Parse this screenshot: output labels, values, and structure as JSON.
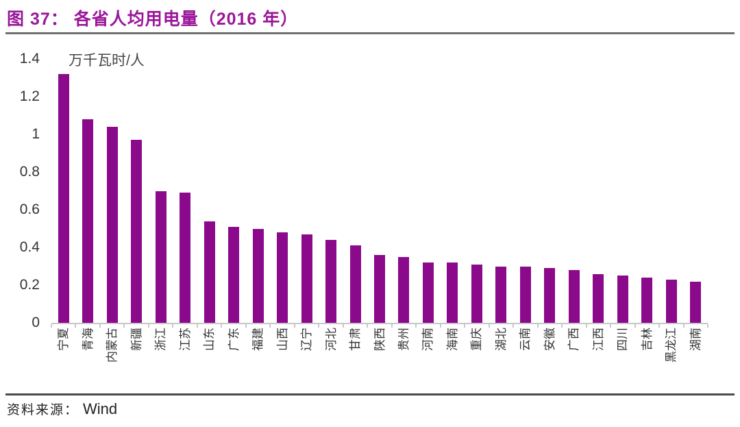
{
  "figure": {
    "title": "图 37：  各省人均用电量（2016 年）",
    "title_color": "#9A169A",
    "source_label": "资料来源：",
    "source_value": "Wind"
  },
  "chart_data": {
    "type": "bar",
    "title": "各省人均用电量（2016 年）",
    "unit_label": "万千瓦时/人",
    "categories": [
      "宁夏",
      "青海",
      "内蒙古",
      "新疆",
      "浙江",
      "江苏",
      "山东",
      "广东",
      "福建",
      "山西",
      "辽宁",
      "河北",
      "甘肃",
      "陕西",
      "贵州",
      "河南",
      "海南",
      "重庆",
      "湖北",
      "云南",
      "安徽",
      "广西",
      "江西",
      "四川",
      "吉林",
      "黑龙江",
      "湖南"
    ],
    "values": [
      1.32,
      1.08,
      1.04,
      0.97,
      0.7,
      0.69,
      0.54,
      0.51,
      0.5,
      0.48,
      0.47,
      0.44,
      0.41,
      0.36,
      0.35,
      0.32,
      0.32,
      0.31,
      0.3,
      0.3,
      0.29,
      0.28,
      0.26,
      0.25,
      0.24,
      0.23,
      0.22
    ],
    "xlabel": "",
    "ylabel": "万千瓦时/人",
    "ylim": [
      0,
      1.4
    ],
    "ytick_labels": [
      "0",
      "0.2",
      "0.4",
      "0.6",
      "0.8",
      "1",
      "1.2",
      "1.4"
    ],
    "grid": false,
    "legend": "none",
    "bar_color": "#8B0A8B",
    "axis_line_color": "#c8c8c8"
  }
}
